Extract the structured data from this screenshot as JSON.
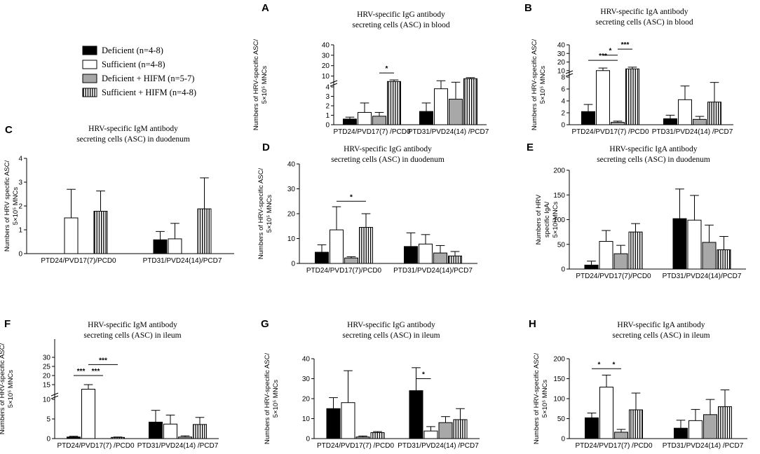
{
  "legend": {
    "entries": [
      {
        "label": "Deficient  (n=4-8)",
        "fill": "black"
      },
      {
        "label": "Sufficient  (n=4-8)",
        "fill": "white"
      },
      {
        "label": "Deficient  + HIFM  (n=5-7)",
        "fill": "gray"
      },
      {
        "label": "Sufficient  + HIFM  (n=4-8)",
        "fill": "stripes"
      }
    ]
  },
  "colors": {
    "deficient": "#000000",
    "sufficient": "#ffffff",
    "deficient_hifm": "#a8a8a8",
    "stripe": "#000000"
  },
  "chart_data": [
    {
      "panel": "A",
      "type": "bar",
      "title": [
        "HRV-specific IgG antibody",
        "secreting cells (ASC) in blood"
      ],
      "ylabel": [
        "Numbers of HRV-specific ASC/",
        "5×10⁵ MNCs"
      ],
      "categories": [
        "PTD24/PVD17(7) /PCD0",
        "PTD31/PVD24(14) /PCD7"
      ],
      "broken_axis": {
        "lower": [
          0,
          4
        ],
        "upper": [
          5,
          40
        ],
        "lower_ticks": [
          "0",
          "1",
          "2",
          "3",
          "4"
        ],
        "upper_ticks": [
          "10",
          "20",
          "30",
          "40"
        ]
      },
      "series": [
        {
          "name": "Deficient",
          "values": [
            0.6,
            1.4
          ],
          "errors": [
            0.2,
            0.9
          ]
        },
        {
          "name": "Sufficient",
          "values": [
            1.3,
            3.8
          ],
          "errors": [
            1.0,
            1.7
          ]
        },
        {
          "name": "Deficient + HIFM",
          "values": [
            0.9,
            2.7
          ],
          "errors": [
            0.4,
            1.4
          ]
        },
        {
          "name": "Sufficient + HIFM",
          "values": [
            4.8,
            7.5
          ],
          "errors": [
            1.5,
            1.0
          ]
        }
      ],
      "significance": [
        {
          "label": "*",
          "from": [
            0,
            2
          ],
          "to": [
            0,
            3
          ],
          "level": 13
        }
      ]
    },
    {
      "panel": "B",
      "type": "bar",
      "title": [
        "HRV-specific IgA antibody",
        "secreting cells (ASC) in blood"
      ],
      "ylabel": [
        "Numbers of HRV-specific ASC/",
        "5×10⁵ MNCs"
      ],
      "categories": [
        "PTD24/PVD17(7) /PCD0",
        "PTD31/PVD24(14) /PCD7"
      ],
      "broken_axis": {
        "lower": [
          0,
          8
        ],
        "upper": [
          9,
          40
        ],
        "lower_ticks": [
          "0",
          "2",
          "4",
          "6",
          "8"
        ],
        "upper_ticks": [
          "10",
          "20",
          "30",
          "40"
        ]
      },
      "series": [
        {
          "name": "Deficient",
          "values": [
            2.2,
            1.0
          ],
          "errors": [
            1.2,
            0.6
          ]
        },
        {
          "name": "Sufficient",
          "values": [
            10.0,
            4.2
          ],
          "errors": [
            3.0,
            2.3
          ]
        },
        {
          "name": "Deficient + HIFM",
          "values": [
            0.4,
            0.9
          ],
          "errors": [
            0.2,
            0.5
          ]
        },
        {
          "name": "Sufficient + HIFM",
          "values": [
            12.0,
            3.8
          ],
          "errors": [
            2.0,
            3.3
          ]
        }
      ],
      "significance": [
        {
          "label": "***",
          "from": [
            0,
            2
          ],
          "to": [
            0,
            3
          ],
          "level": 35
        },
        {
          "label": "*",
          "from": [
            0,
            1
          ],
          "to": [
            0,
            2
          ],
          "level": 28
        },
        {
          "label": "***",
          "from": [
            0,
            0
          ],
          "to": [
            0,
            2
          ],
          "level": 22
        }
      ]
    },
    {
      "panel": "C",
      "type": "bar",
      "title": [
        "HRV-specific IgM antibody",
        "secreting cells (ASC) in duodenum"
      ],
      "ylabel": [
        "Numbers of HRV specific ASC/",
        "5×10⁵ MNCs"
      ],
      "categories": [
        "PTD24/PVD17(7)/PCD0",
        "PTD31/PVD24(14)/PCD7"
      ],
      "ylim": [
        0,
        4
      ],
      "yticks": [
        "0",
        "1",
        "2",
        "3",
        "4"
      ],
      "series": [
        {
          "name": "Deficient",
          "values": [
            0,
            0.58
          ],
          "errors": [
            0,
            0.35
          ]
        },
        {
          "name": "Sufficient",
          "values": [
            1.5,
            0.62
          ],
          "errors": [
            1.2,
            0.65
          ]
        },
        {
          "name": "Deficient + HIFM",
          "values": [
            0,
            0
          ],
          "errors": [
            0,
            0
          ]
        },
        {
          "name": "Sufficient + HIFM",
          "values": [
            1.78,
            1.88
          ],
          "errors": [
            0.85,
            1.3
          ]
        }
      ],
      "significance": []
    },
    {
      "panel": "D",
      "type": "bar",
      "title": [
        "HRV-specific IgG antibody",
        "secreting cells (ASC) in duodenum"
      ],
      "ylabel": [
        "Numbers of HRV-specific ASC/",
        "5×10⁵ MNCs"
      ],
      "categories": [
        "PTD24/PVD17(7)/PCD0",
        "PTD31/PVD24(14)/PCD7"
      ],
      "ylim": [
        0,
        40
      ],
      "yticks": [
        "0",
        "10",
        "20",
        "30",
        "40"
      ],
      "series": [
        {
          "name": "Deficient",
          "values": [
            4.5,
            6.8
          ],
          "errors": [
            3.0,
            5.5
          ]
        },
        {
          "name": "Sufficient",
          "values": [
            13.5,
            7.8
          ],
          "errors": [
            9.3,
            3.8
          ]
        },
        {
          "name": "Deficient + HIFM",
          "values": [
            2.2,
            4.2
          ],
          "errors": [
            0.5,
            3.0
          ]
        },
        {
          "name": "Sufficient + HIFM",
          "values": [
            14.5,
            3.0
          ],
          "errors": [
            5.5,
            1.8
          ]
        }
      ],
      "significance": [
        {
          "label": "*",
          "from": [
            0,
            1
          ],
          "to": [
            0,
            3
          ],
          "level": 25
        }
      ]
    },
    {
      "panel": "E",
      "type": "bar",
      "title": [
        "HRV-specific IgA antibody",
        "secreting cells (ASC) in duodenum"
      ],
      "ylabel": [
        "Numbers of HRV",
        "specific IgA/",
        "5×10⁵MNCs"
      ],
      "categories": [
        "PTD24/PVD17(7)/PCD0",
        "PTD31/PVD24(14)/PCD7"
      ],
      "ylim": [
        0,
        200
      ],
      "yticks": [
        "0",
        "50",
        "100",
        "150",
        "200"
      ],
      "series": [
        {
          "name": "Deficient",
          "values": [
            8,
            102
          ],
          "errors": [
            8,
            60
          ]
        },
        {
          "name": "Sufficient",
          "values": [
            56,
            99
          ],
          "errors": [
            22,
            50
          ]
        },
        {
          "name": "Deficient + HIFM",
          "values": [
            31,
            54
          ],
          "errors": [
            17,
            35
          ]
        },
        {
          "name": "Sufficient + HIFM",
          "values": [
            75,
            39
          ],
          "errors": [
            17,
            27
          ]
        }
      ],
      "significance": []
    },
    {
      "panel": "F",
      "type": "bar",
      "title": [
        "HRV-specific IgM antibody",
        "secreting cells (ASC) in ileum"
      ],
      "ylabel": [
        "Numbers of HRV-specific ASC/",
        "5×10⁵ MNCs"
      ],
      "categories": [
        "PTD24/PVD17(7) /PCD0",
        "PTD31/PVD24(14) /PCD7"
      ],
      "broken_axis": {
        "lower": [
          0,
          10
        ],
        "upper": [
          10,
          40
        ],
        "lower_ticks": [
          "0",
          "5",
          "10"
        ],
        "upper_ticks": [
          "15",
          "20",
          "25",
          "30"
        ]
      },
      "series": [
        {
          "name": "Deficient",
          "values": [
            0.4,
            4.2
          ],
          "errors": [
            0.2,
            3.0
          ]
        },
        {
          "name": "Sufficient",
          "values": [
            12.5,
            3.7
          ],
          "errors": [
            2.5,
            2.3
          ]
        },
        {
          "name": "Deficient + HIFM",
          "values": [
            0,
            0.4
          ],
          "errors": [
            0,
            0.3
          ]
        },
        {
          "name": "Sufficient + HIFM",
          "values": [
            0.3,
            3.6
          ],
          "errors": [
            0.1,
            1.8
          ]
        }
      ],
      "significance": [
        {
          "label": "***",
          "from": [
            0,
            0
          ],
          "to": [
            0,
            1
          ],
          "level": 20
        },
        {
          "label": "***",
          "from": [
            0,
            1
          ],
          "to": [
            0,
            2
          ],
          "level": 20
        },
        {
          "label": "***",
          "from": [
            0,
            1
          ],
          "to": [
            0,
            3
          ],
          "level": 26
        }
      ]
    },
    {
      "panel": "G",
      "type": "bar",
      "title": [
        "HRV-specific IgG antibody",
        "secreting cells (ASC) in ileum"
      ],
      "ylabel": [
        "Numbers of HRV-specific ASC/",
        "5×10⁵ MNCs"
      ],
      "categories": [
        "PTD24/PVD17(7) /PCD0",
        "PTD31/PVD24(14) /PCD7"
      ],
      "ylim": [
        0,
        40
      ],
      "yticks": [
        "0",
        "10",
        "20",
        "30",
        "40"
      ],
      "series": [
        {
          "name": "Deficient",
          "values": [
            15,
            24
          ],
          "errors": [
            5.5,
            11.5
          ]
        },
        {
          "name": "Sufficient",
          "values": [
            18,
            3.8
          ],
          "errors": [
            16,
            2.2
          ]
        },
        {
          "name": "Deficient + HIFM",
          "values": [
            0.8,
            8
          ],
          "errors": [
            0.5,
            3
          ]
        },
        {
          "name": "Sufficient + HIFM",
          "values": [
            3,
            9.5
          ],
          "errors": [
            0.5,
            5.5
          ]
        }
      ],
      "significance": [
        {
          "label": "*",
          "from": [
            1,
            0
          ],
          "to": [
            1,
            1
          ],
          "level": 30
        }
      ]
    },
    {
      "panel": "H",
      "type": "bar",
      "title": [
        "HRV-specific IgA antibody",
        "secreting cells (ASC) in ileum"
      ],
      "ylabel": [
        "Numbers of HRV-specific ASC/",
        "5×10⁵ MNCs"
      ],
      "categories": [
        "PTD24/PVD17(7) /PCD0",
        "PTD31/PVD24(14) /PCD7"
      ],
      "ylim": [
        0,
        200
      ],
      "yticks": [
        "0",
        "50",
        "100",
        "150",
        "200"
      ],
      "series": [
        {
          "name": "Deficient",
          "values": [
            52,
            26
          ],
          "errors": [
            12,
            20
          ]
        },
        {
          "name": "Sufficient",
          "values": [
            129,
            45
          ],
          "errors": [
            30,
            28
          ]
        },
        {
          "name": "Deficient + HIFM",
          "values": [
            16,
            60
          ],
          "errors": [
            7,
            38
          ]
        },
        {
          "name": "Sufficient + HIFM",
          "values": [
            72,
            80
          ],
          "errors": [
            42,
            42
          ]
        }
      ],
      "significance": [
        {
          "label": "*",
          "from": [
            0,
            0
          ],
          "to": [
            0,
            1
          ],
          "level": 175
        },
        {
          "label": "*",
          "from": [
            0,
            1
          ],
          "to": [
            0,
            2
          ],
          "level": 175
        }
      ]
    }
  ]
}
